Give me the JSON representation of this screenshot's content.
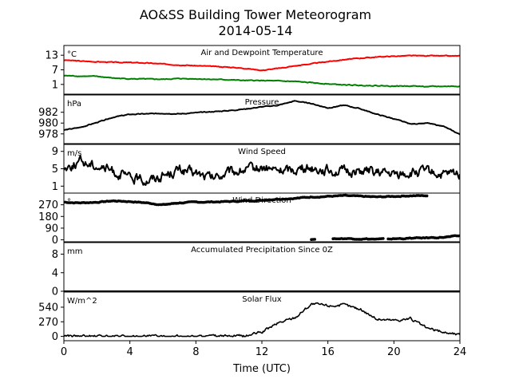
{
  "title": "AO&SS Building Tower Meteorogram",
  "subtitle": "2014-05-14",
  "xlabel": "Time (UTC)",
  "x_ticks": [
    "0",
    "4",
    "8",
    "12",
    "16",
    "20",
    "24"
  ],
  "chart_data": [
    {
      "type": "line",
      "title": "Air and Dewpoint Temperature",
      "unit": "°C",
      "xlim": [
        0,
        24
      ],
      "ylim": [
        -3,
        17
      ],
      "yticks": [
        "13",
        "7",
        "1"
      ],
      "x": [
        0,
        1,
        2,
        3,
        4,
        5,
        6,
        7,
        8,
        9,
        10,
        11,
        12,
        13,
        14,
        15,
        16,
        17,
        18,
        19,
        20,
        21,
        22,
        23,
        24
      ],
      "series": [
        {
          "color": "#ff0000",
          "values": [
            11.0,
            10.6,
            10.3,
            10.1,
            10.0,
            9.8,
            9.4,
            9.0,
            8.7,
            8.4,
            8.1,
            7.6,
            6.8,
            7.6,
            8.6,
            9.5,
            10.4,
            11.2,
            11.8,
            12.3,
            12.6,
            12.8,
            12.8,
            12.7,
            12.7
          ]
        },
        {
          "color": "#008000",
          "values": [
            4.6,
            4.4,
            4.3,
            3.6,
            3.3,
            3.2,
            3.1,
            3.4,
            3.3,
            3.1,
            2.9,
            2.6,
            2.6,
            2.4,
            2.2,
            1.7,
            1.2,
            0.8,
            0.6,
            0.5,
            0.3,
            0.4,
            0.1,
            0.2,
            0.3
          ]
        }
      ]
    },
    {
      "type": "line",
      "title": "Pressure",
      "unit": "hPa",
      "xlim": [
        0,
        24
      ],
      "ylim": [
        976.2,
        985.2
      ],
      "yticks": [
        "982",
        "980",
        "978"
      ],
      "x": [
        0,
        1,
        2,
        3,
        4,
        5,
        6,
        7,
        8,
        9,
        10,
        11,
        12,
        13,
        14,
        15,
        16,
        17,
        18,
        19,
        20,
        21,
        22,
        23,
        24
      ],
      "series": [
        {
          "color": "#000000",
          "values": [
            978.7,
            979.2,
            980.1,
            981.1,
            981.6,
            981.7,
            981.8,
            981.7,
            981.9,
            982.1,
            982.3,
            982.6,
            983.0,
            983.3,
            984.1,
            983.6,
            982.8,
            983.3,
            982.6,
            981.6,
            980.8,
            979.8,
            980.0,
            979.4,
            977.9
          ]
        }
      ]
    },
    {
      "type": "line",
      "title": "Wind Speed",
      "unit": "m/s",
      "xlim": [
        0,
        24
      ],
      "ylim": [
        -0.6,
        10.6
      ],
      "yticks": [
        "9",
        "5",
        "1"
      ],
      "x": [
        0,
        1,
        2,
        3,
        4,
        5,
        6,
        7,
        8,
        9,
        10,
        11,
        12,
        13,
        14,
        15,
        16,
        17,
        18,
        19,
        20,
        21,
        22,
        23,
        24
      ],
      "series": [
        {
          "color": "#000000",
          "values": [
            5.2,
            6.6,
            5.8,
            4.4,
            2.8,
            2.4,
            3.5,
            4.8,
            3.9,
            2.8,
            4.1,
            4.7,
            5.2,
            4.6,
            4.9,
            5.3,
            4.7,
            4.2,
            4.6,
            4.0,
            3.6,
            4.0,
            4.4,
            3.5,
            4.0
          ]
        }
      ]
    },
    {
      "type": "scatter",
      "title": "Wind Direction",
      "unit": "°",
      "xlim": [
        0,
        24
      ],
      "ylim": [
        -15,
        360
      ],
      "yticks": [
        "270",
        "180",
        "90",
        "0"
      ],
      "x": [
        0,
        1,
        2,
        3,
        4,
        5,
        6,
        7,
        8,
        9,
        10,
        11,
        12,
        13,
        14,
        15,
        16,
        17,
        18,
        19,
        20,
        21,
        22
      ],
      "series": [
        {
          "color": "#000000",
          "values": [
            290,
            285,
            290,
            300,
            295,
            285,
            270,
            285,
            290,
            292,
            295,
            300,
            305,
            315,
            320,
            330,
            335,
            340,
            335,
            330,
            335,
            340,
            340
          ]
        },
        {
          "color": "#000000",
          "x": [
            15,
            16,
            17,
            18,
            19,
            20,
            21,
            22,
            23,
            24
          ],
          "values": [
            5,
            8,
            10,
            8,
            5,
            8,
            12,
            15,
            20,
            30
          ]
        }
      ]
    },
    {
      "type": "area",
      "title": "Accumulated Precipitation Since 0Z",
      "unit": "mm",
      "xlim": [
        0,
        24
      ],
      "ylim": [
        0,
        10.5
      ],
      "yticks": [
        "8",
        "4",
        "0"
      ],
      "x": [
        0,
        24
      ],
      "series": [
        {
          "color": "#000000",
          "values": [
            0,
            0
          ]
        }
      ]
    },
    {
      "type": "line",
      "title": "Solar Flux",
      "unit": "W/m^2",
      "xlim": [
        0,
        24
      ],
      "ylim": [
        -80,
        820
      ],
      "yticks": [
        "540",
        "270",
        "0"
      ],
      "x": [
        0,
        1,
        2,
        3,
        4,
        5,
        6,
        7,
        8,
        9,
        10,
        11,
        12,
        13,
        14,
        15,
        16,
        17,
        18,
        19,
        20,
        21,
        22,
        23,
        24
      ],
      "series": [
        {
          "color": "#000000",
          "values": [
            20,
            0,
            0,
            0,
            0,
            0,
            0,
            0,
            0,
            0,
            0,
            5,
            80,
            250,
            350,
            600,
            570,
            580,
            500,
            320,
            300,
            330,
            150,
            80,
            30
          ]
        }
      ]
    }
  ]
}
